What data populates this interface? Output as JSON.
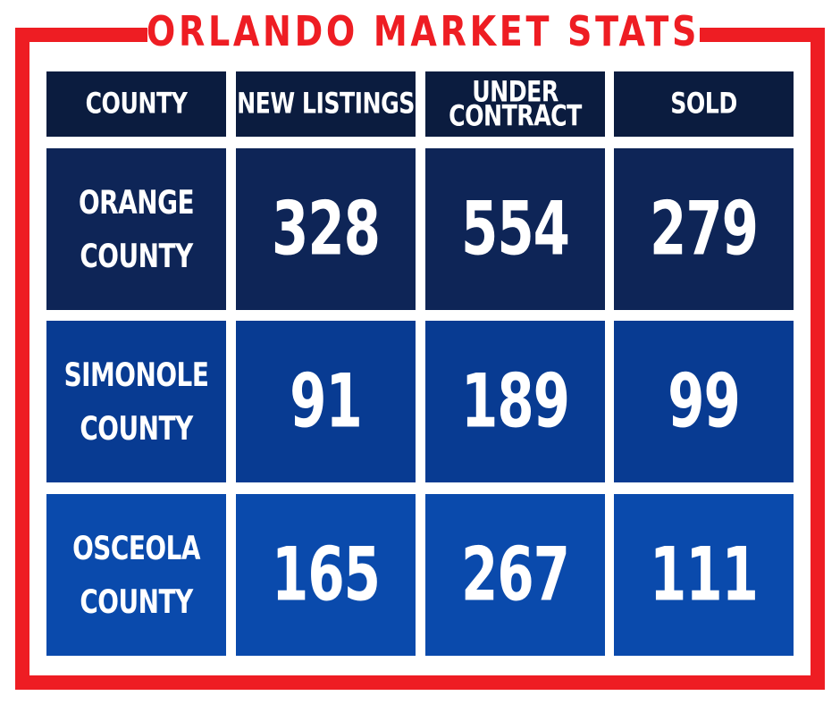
{
  "title": "ORLANDO MARKET STATS",
  "colors": {
    "frame": "#ee1d23",
    "header_bg": "#0b1c3f",
    "row_bgs": [
      "#0e2557",
      "#083b92",
      "#0a4aac"
    ],
    "text": "#ffffff"
  },
  "table": {
    "headers": [
      "COUNTY",
      "NEW LISTINGS",
      "UNDER CONTRACT",
      "SOLD"
    ],
    "header_lines": {
      "under_contract": [
        "UNDER",
        "CONTRACT"
      ]
    },
    "rows": [
      {
        "county": [
          "ORANGE",
          "COUNTY"
        ],
        "new_listings": "328",
        "under_contract": "554",
        "sold": "279"
      },
      {
        "county": [
          "SIMONOLE",
          "COUNTY"
        ],
        "new_listings": "91",
        "under_contract": "189",
        "sold": "99"
      },
      {
        "county": [
          "OSCEOLA",
          "COUNTY"
        ],
        "new_listings": "165",
        "under_contract": "267",
        "sold": "111"
      }
    ]
  }
}
